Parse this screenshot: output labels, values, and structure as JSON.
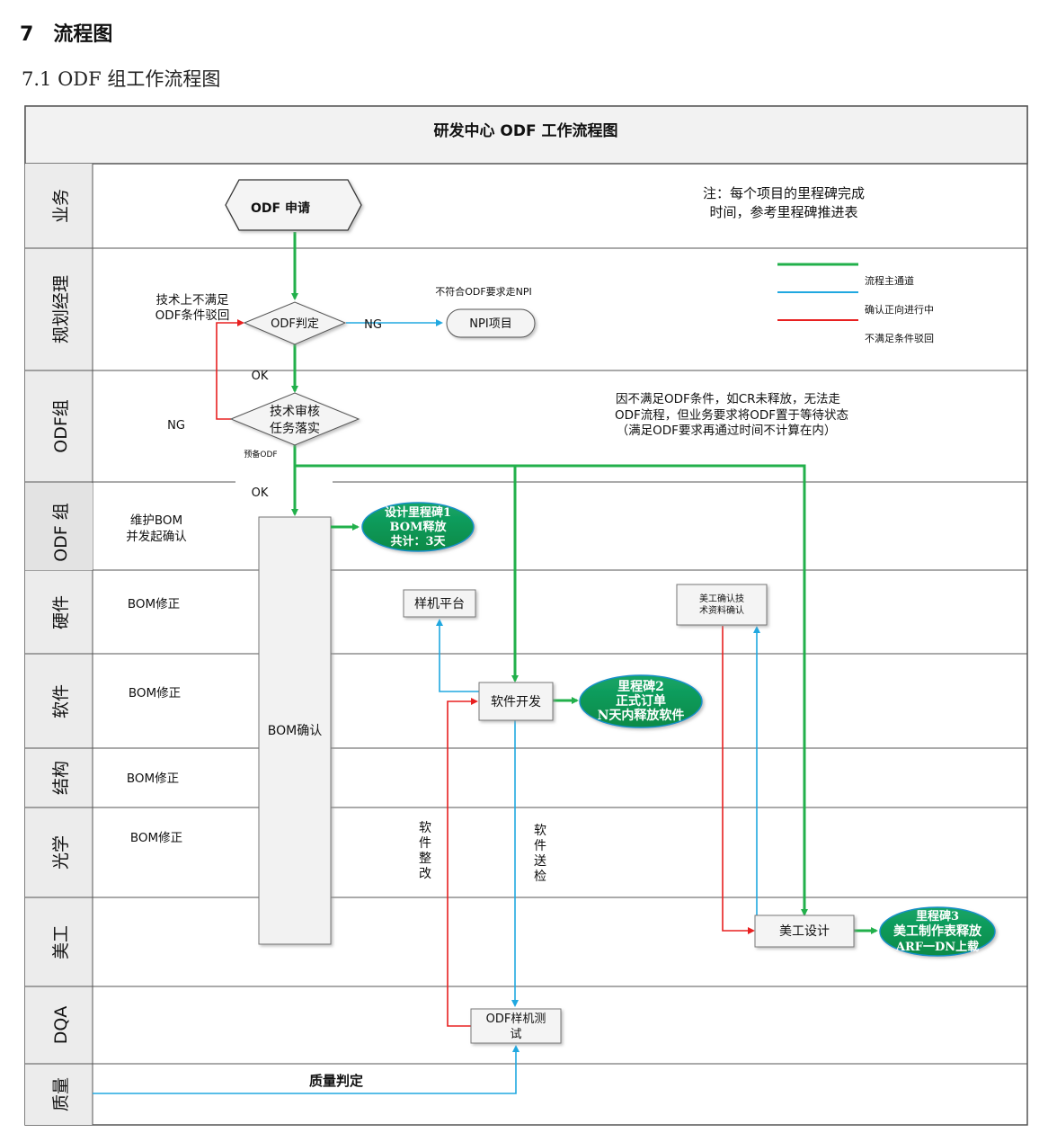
{
  "heading": {
    "number": "7",
    "title": "流程图"
  },
  "subheading": "7.1 ODF 组工作流程图",
  "diagram": {
    "title": "研发中心 ODF 工作流程图",
    "lanes": [
      "业务",
      "规划经理",
      "ODF组",
      "ODF 组",
      "硬件",
      "软件",
      "结构",
      "光学",
      "美工",
      "DQA",
      "质量"
    ],
    "nodes": {
      "start": "ODF 申请",
      "odf_decision": "ODF判定",
      "npi": "NPI项目",
      "tech_review_1": "技术审核",
      "tech_review_2": "任务落实",
      "bom_confirm": "BOM确认",
      "proto_platform": "样机平台",
      "sw_dev": "软件开发",
      "art_confirm_1": "美工确认技",
      "art_confirm_2": "术资料确认",
      "art_design": "美工设计",
      "odf_test_1": "ODF样机测",
      "odf_test_2": "试"
    },
    "milestones": {
      "m1": [
        "设计里程碑1",
        "BOM释放",
        "共计：3天"
      ],
      "m2": [
        "里程碑2",
        "正式订单",
        "N天内释放软件"
      ],
      "m3": [
        "里程碑3",
        "美工制作表释放",
        "ARF一DN上载"
      ]
    },
    "notes": {
      "note_top_1": "注：每个项目的里程碑完成",
      "note_top_2": "时间，参考里程碑推进表",
      "reject_1": "技术上不满足",
      "reject_2": "ODF条件驳回",
      "npi_note": "不符合ODF要求走NPI",
      "ng_right": "NG",
      "ok_1": "OK",
      "ng_left": "NG",
      "wait_1": "因不满足ODF条件，如CR未释放，无法走",
      "wait_2": "ODF流程，但业务要求将ODF置于等待状态",
      "wait_3": "（满足ODF要求再通过时间不计算在内）",
      "prep_odf": "预备ODF",
      "ok_2": "OK",
      "maintain_1": "维护BOM",
      "maintain_2": "并发起确认",
      "bom_fix_hw": "BOM修正",
      "bom_fix_sw": "BOM修正",
      "bom_fix_mech": "BOM修正",
      "bom_fix_opt": "BOM修正",
      "sw_rectify": [
        "软",
        "件",
        "整",
        "改"
      ],
      "sw_submit": [
        "软",
        "件",
        "送",
        "检"
      ],
      "quality_judge": "质量判定"
    },
    "legend": [
      {
        "label": "流程主通道",
        "color": "#22b04b"
      },
      {
        "label": "确认正向进行中",
        "color": "#20a8e0"
      },
      {
        "label": "不满足条件驳回",
        "color": "#e82020"
      }
    ],
    "colors": {
      "main": "#22b04b",
      "confirm": "#20a8e0",
      "reject": "#e82020",
      "milestone": "#0e9f56",
      "milestone_edge": "#1790c8"
    }
  }
}
